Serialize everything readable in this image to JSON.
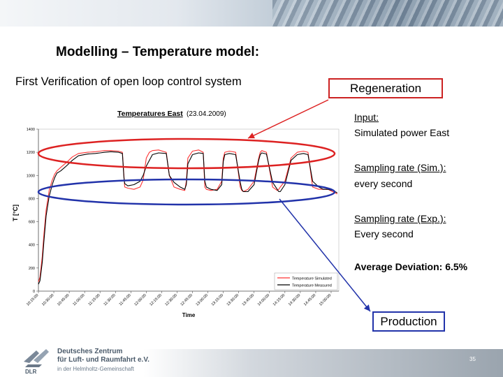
{
  "slide": {
    "title": "Modelling – Temperature model:",
    "subtitle": "First Verification of open loop control system",
    "page_number": "35"
  },
  "callouts": {
    "regeneration": "Regeneration",
    "production": "Production",
    "input_label": "Input:",
    "input_value": "Simulated power East",
    "sampling_sim_label": "Sampling rate (Sim.):",
    "sampling_sim_value": "every second",
    "sampling_exp_label": "Sampling rate (Exp.):",
    "sampling_exp_value": "Every second",
    "average_deviation": "Average Deviation: 6.5%"
  },
  "footer": {
    "org_line1": "Deutsches Zentrum",
    "org_line2": "für Luft- und Raumfahrt e.V.",
    "org_line3": "in der Helmholtz-Gemeinschaft",
    "logo_text": "DLR"
  },
  "colors": {
    "simulated": "#ff3333",
    "measured": "#000000",
    "regeneration_ellipse": "#dd2222",
    "production_ellipse": "#2233aa"
  },
  "chart_data": {
    "type": "line",
    "title": "Temperatures East",
    "title_suffix": "(23.04.2009)",
    "xlabel": "Time",
    "ylabel": "T [°C]",
    "ylim": [
      0,
      1400
    ],
    "yticks": [
      0,
      200,
      400,
      600,
      800,
      1000,
      1200,
      1400
    ],
    "grid": false,
    "legend_position": "bottom-right",
    "x_tick_labels": [
      "10:15:00",
      "10:30:00",
      "10:45:00",
      "11:00:00",
      "11:15:00",
      "11:30:00",
      "11:45:00",
      "12:00:00",
      "12:15:00",
      "12:30:00",
      "12:45:00",
      "13:00:00",
      "13:15:00",
      "13:30:00",
      "13:45:00",
      "14:00:00",
      "14:15:00",
      "14:30:00",
      "14:45:00",
      "15:00:00"
    ],
    "x": [
      0,
      0.1,
      0.25,
      0.35,
      0.5,
      0.7,
      0.9,
      1.05,
      1.2,
      1.45,
      1.8,
      2.2,
      2.6,
      3.2,
      3.7,
      4.0,
      4.3,
      4.7,
      5.2,
      5.45,
      5.55,
      5.6,
      5.8,
      6.2,
      6.6,
      6.8,
      7.0,
      7.2,
      7.4,
      7.8,
      8.3,
      8.5,
      8.8,
      9.2,
      9.5,
      9.6,
      9.7,
      10.0,
      10.4,
      10.7,
      10.8,
      10.9,
      11.2,
      11.6,
      11.9,
      12.0,
      12.1,
      12.4,
      12.8,
      13.1,
      13.2,
      13.3,
      13.6,
      14.0,
      14.3,
      14.4,
      14.5,
      14.8,
      15.2,
      15.5,
      15.6,
      15.7,
      16.0,
      16.4,
      16.8,
      17.2,
      17.5,
      17.8,
      18.2,
      18.5,
      18.8,
      19.1,
      19.4
    ],
    "series": [
      {
        "name": "Temperature Simulated",
        "color": "#ff3333",
        "values": [
          80,
          120,
          300,
          480,
          700,
          870,
          960,
          1010,
          1040,
          1070,
          1110,
          1160,
          1190,
          1200,
          1205,
          1210,
          1215,
          1215,
          1210,
          1200,
          1000,
          900,
          890,
          880,
          900,
          960,
          1150,
          1200,
          1215,
          1220,
          1200,
          1000,
          900,
          880,
          870,
          950,
          1150,
          1210,
          1220,
          1200,
          900,
          880,
          870,
          880,
          950,
          1150,
          1200,
          1210,
          1200,
          900,
          870,
          860,
          880,
          950,
          1150,
          1200,
          1215,
          1200,
          900,
          870,
          880,
          900,
          950,
          1150,
          1200,
          1210,
          1200,
          900,
          880,
          880,
          880,
          860,
          840
        ]
      },
      {
        "name": "Temperature Measured",
        "color": "#000000",
        "values": [
          60,
          90,
          250,
          420,
          650,
          820,
          920,
          980,
          1020,
          1040,
          1080,
          1130,
          1170,
          1185,
          1190,
          1195,
          1200,
          1205,
          1200,
          1190,
          980,
          930,
          910,
          920,
          950,
          1000,
          1080,
          1130,
          1180,
          1195,
          1190,
          1000,
          940,
          900,
          880,
          920,
          1100,
          1180,
          1195,
          1190,
          950,
          900,
          880,
          870,
          920,
          1120,
          1180,
          1190,
          1180,
          940,
          880,
          860,
          860,
          920,
          1130,
          1180,
          1195,
          1185,
          940,
          880,
          860,
          860,
          920,
          1130,
          1180,
          1190,
          1180,
          950,
          900,
          880,
          880,
          870,
          850
        ]
      }
    ]
  }
}
